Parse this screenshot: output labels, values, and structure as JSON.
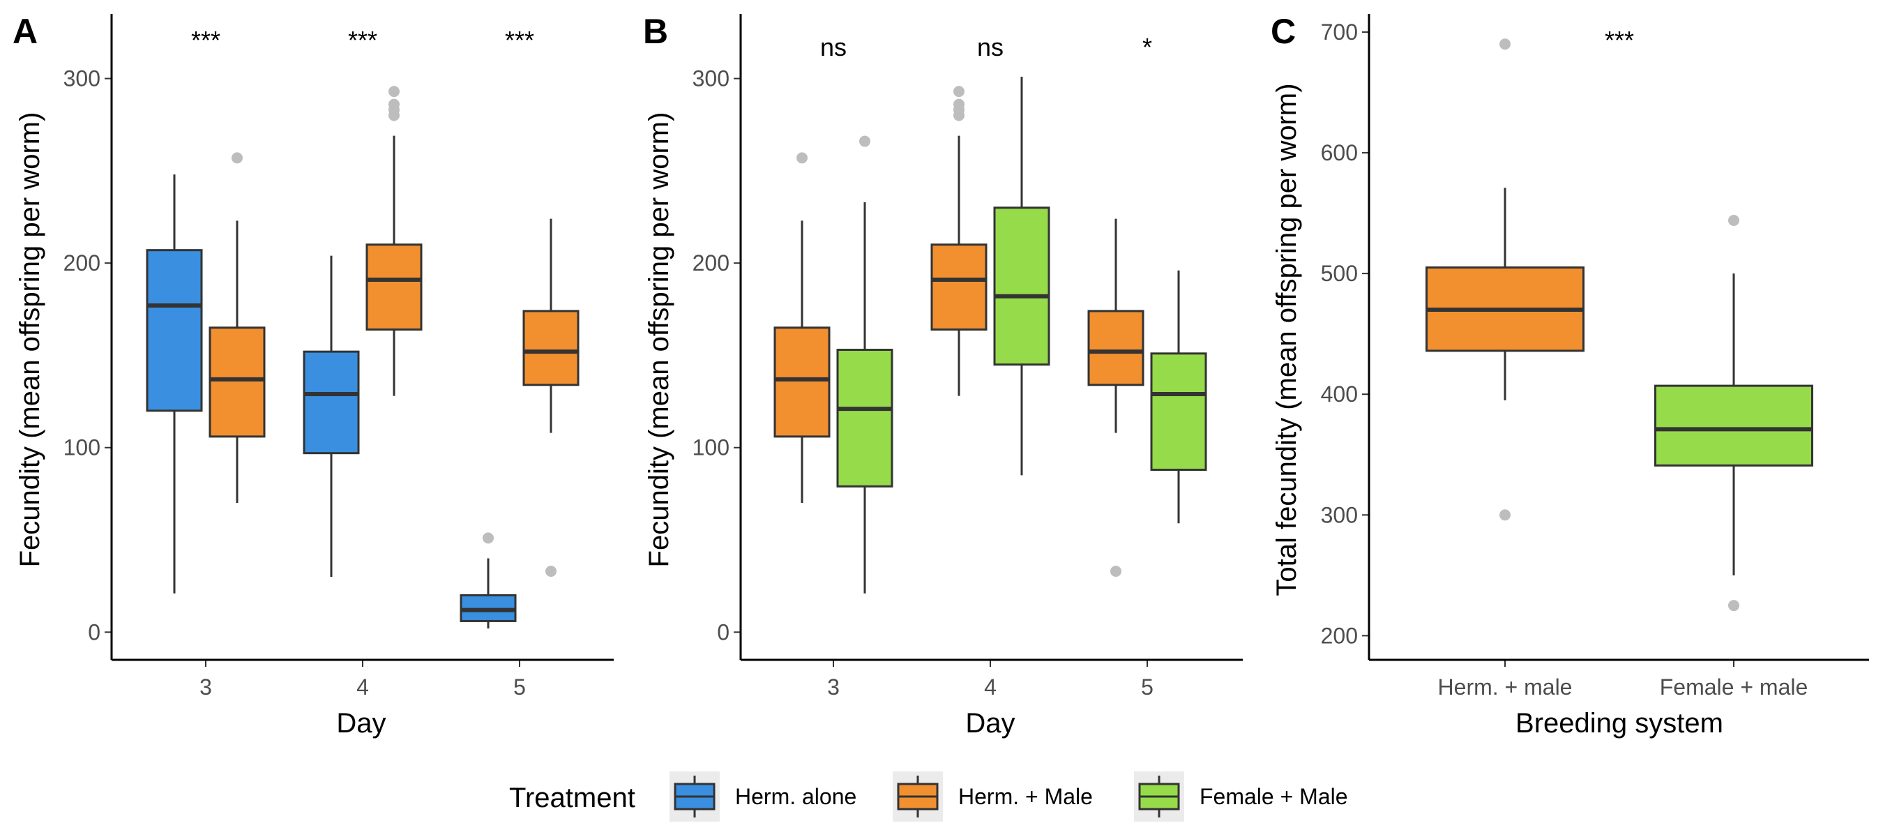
{
  "colors": {
    "herm_alone": "#3a8fe0",
    "herm_male": "#f29030",
    "female_male": "#96dc4a",
    "outlier": "#bdbdbd",
    "line": "#333333",
    "legend_key_bg": "#ebebeb"
  },
  "legend": {
    "title": "Treatment",
    "items": [
      {
        "label": "Herm. alone",
        "color_key": "herm_alone"
      },
      {
        "label": "Herm. + Male",
        "color_key": "herm_male"
      },
      {
        "label": "Female + Male",
        "color_key": "female_male"
      }
    ]
  },
  "chart_data": [
    {
      "tag": "A",
      "type": "boxplot",
      "xlabel": "Day",
      "ylabel": "Fecundity (mean offspring per worm)",
      "ylim": [
        -15,
        335
      ],
      "yticks": [
        0,
        100,
        200,
        300
      ],
      "categories": [
        "3",
        "4",
        "5"
      ],
      "annotations": [
        "***",
        "***",
        "***"
      ],
      "grid": false,
      "boxes": [
        {
          "category": "3",
          "series": "Herm. alone",
          "color_key": "herm_alone",
          "whisker_low": 21,
          "q1": 120,
          "median": 177,
          "q3": 207,
          "whisker_high": 248,
          "outliers": []
        },
        {
          "category": "3",
          "series": "Herm. + Male",
          "color_key": "herm_male",
          "whisker_low": 70,
          "q1": 106,
          "median": 137,
          "q3": 165,
          "whisker_high": 223,
          "outliers": [
            257
          ]
        },
        {
          "category": "4",
          "series": "Herm. alone",
          "color_key": "herm_alone",
          "whisker_low": 30,
          "q1": 97,
          "median": 129,
          "q3": 152,
          "whisker_high": 204,
          "outliers": []
        },
        {
          "category": "4",
          "series": "Herm. + Male",
          "color_key": "herm_male",
          "whisker_low": 128,
          "q1": 164,
          "median": 191,
          "q3": 210,
          "whisker_high": 269,
          "outliers": [
            280,
            283,
            286,
            293
          ]
        },
        {
          "category": "5",
          "series": "Herm. alone",
          "color_key": "herm_alone",
          "whisker_low": 2,
          "q1": 6,
          "median": 12,
          "q3": 20,
          "whisker_high": 40,
          "outliers": [
            51
          ]
        },
        {
          "category": "5",
          "series": "Herm. + Male",
          "color_key": "herm_male",
          "whisker_low": 108,
          "q1": 134,
          "median": 152,
          "q3": 174,
          "whisker_high": 224,
          "outliers": [
            33
          ]
        }
      ]
    },
    {
      "tag": "B",
      "type": "boxplot",
      "xlabel": "Day",
      "ylabel": "Fecundity (mean offspring per worm)",
      "ylim": [
        -15,
        335
      ],
      "yticks": [
        0,
        100,
        200,
        300
      ],
      "categories": [
        "3",
        "4",
        "5"
      ],
      "annotations": [
        "ns",
        "ns",
        "*"
      ],
      "grid": false,
      "boxes": [
        {
          "category": "3",
          "series": "Herm. + Male",
          "color_key": "herm_male",
          "whisker_low": 70,
          "q1": 106,
          "median": 137,
          "q3": 165,
          "whisker_high": 223,
          "outliers": [
            257
          ]
        },
        {
          "category": "3",
          "series": "Female + Male",
          "color_key": "female_male",
          "whisker_low": 21,
          "q1": 79,
          "median": 121,
          "q3": 153,
          "whisker_high": 233,
          "outliers": [
            266
          ]
        },
        {
          "category": "4",
          "series": "Herm. + Male",
          "color_key": "herm_male",
          "whisker_low": 128,
          "q1": 164,
          "median": 191,
          "q3": 210,
          "whisker_high": 269,
          "outliers": [
            280,
            283,
            286,
            293
          ]
        },
        {
          "category": "4",
          "series": "Female + Male",
          "color_key": "female_male",
          "whisker_low": 85,
          "q1": 145,
          "median": 182,
          "q3": 230,
          "whisker_high": 301,
          "outliers": []
        },
        {
          "category": "5",
          "series": "Herm. + Male",
          "color_key": "herm_male",
          "whisker_low": 108,
          "q1": 134,
          "median": 152,
          "q3": 174,
          "whisker_high": 224,
          "outliers": [
            33
          ]
        },
        {
          "category": "5",
          "series": "Female + Male",
          "color_key": "female_male",
          "whisker_low": 59,
          "q1": 88,
          "median": 129,
          "q3": 151,
          "whisker_high": 196,
          "outliers": []
        }
      ]
    },
    {
      "tag": "C",
      "type": "boxplot",
      "xlabel": "Breeding system",
      "ylabel": "Total fecundity (mean offspring per worm)",
      "ylim": [
        180,
        715
      ],
      "yticks": [
        200,
        300,
        400,
        500,
        600,
        700
      ],
      "categories": [
        "Herm. + male",
        "Female + male"
      ],
      "annotations": [
        "***"
      ],
      "grid": false,
      "boxes": [
        {
          "category": "Herm. + male",
          "color_key": "herm_male",
          "whisker_low": 395,
          "q1": 436,
          "median": 470,
          "q3": 505,
          "whisker_high": 571,
          "outliers": [
            300,
            690
          ]
        },
        {
          "category": "Female + male",
          "color_key": "female_male",
          "whisker_low": 250,
          "q1": 341,
          "median": 371,
          "q3": 407,
          "whisker_high": 500,
          "outliers": [
            225,
            544
          ]
        }
      ]
    }
  ]
}
